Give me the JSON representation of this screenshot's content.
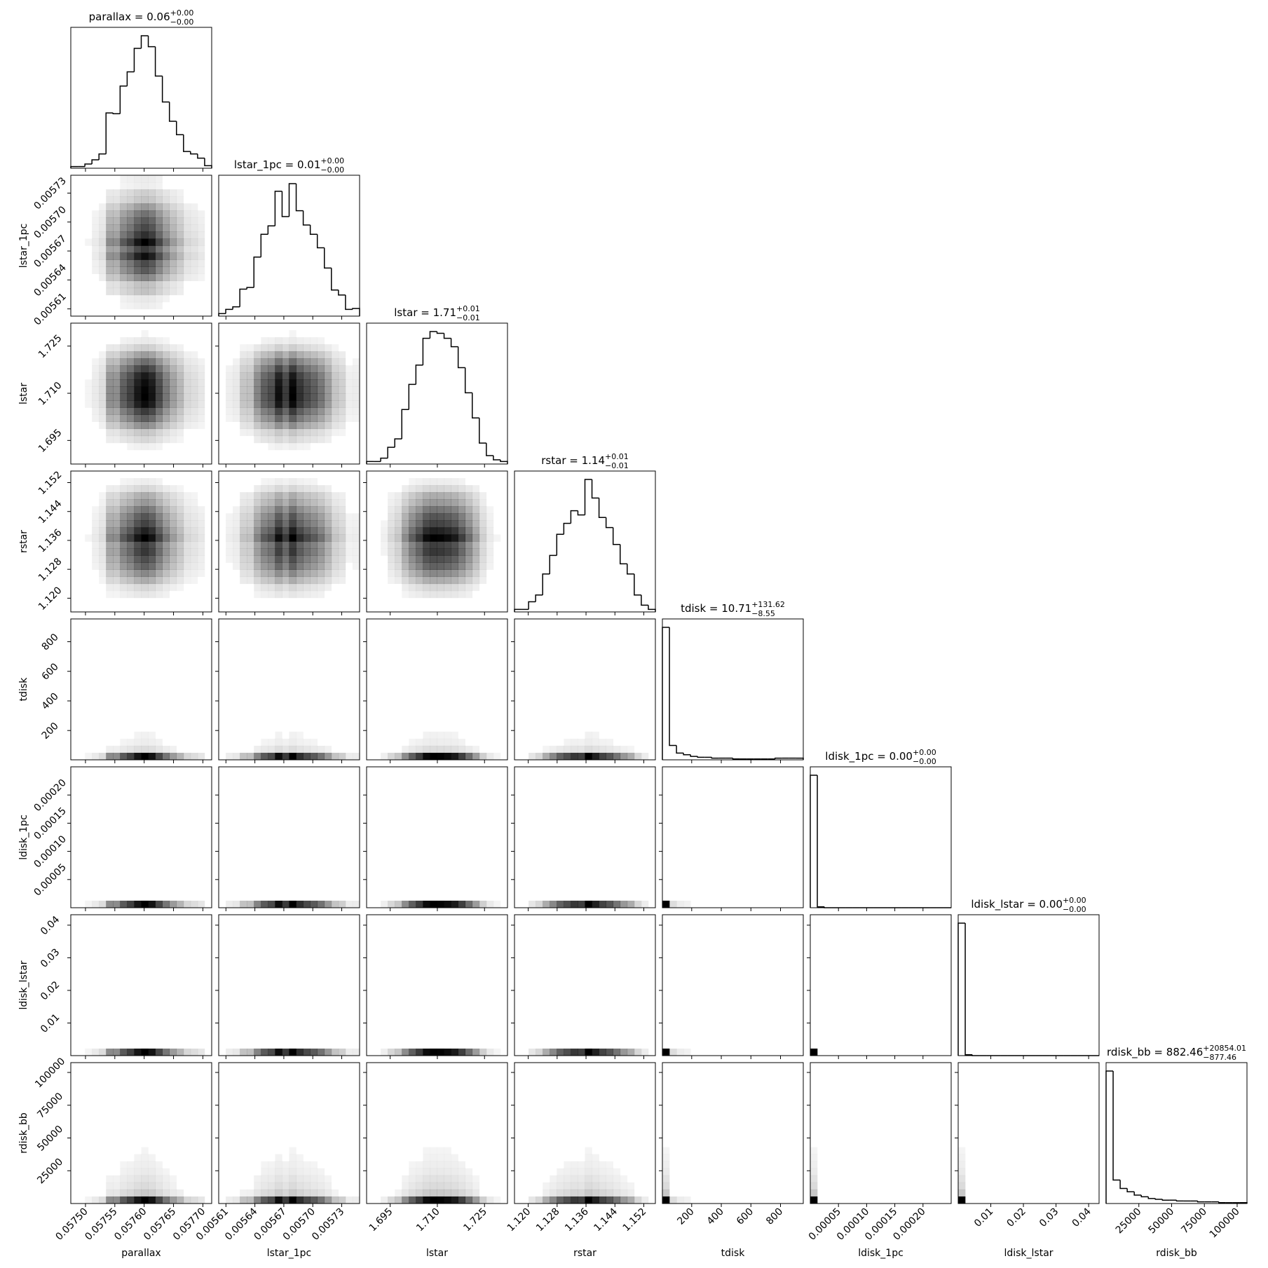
{
  "chart_data": {
    "type": "corner",
    "color": "#000000",
    "params": [
      {
        "name": "parallax",
        "title": "parallax = 0.06",
        "title_sup": "+0.00",
        "title_sub": "−0.00",
        "xlim": [
          0.057475,
          0.057715
        ],
        "ticks": [
          {
            "value": 0.0575,
            "label": "0.05750"
          },
          {
            "value": 0.05755,
            "label": "0.05755"
          },
          {
            "value": 0.0576,
            "label": "0.05760"
          },
          {
            "value": 0.05765,
            "label": "0.05765"
          },
          {
            "value": 0.0577,
            "label": "0.05770"
          }
        ],
        "bins": [
          0.057475,
          0.057487,
          0.057499,
          0.057511,
          0.057523,
          0.057535,
          0.057547,
          0.057559,
          0.057571,
          0.057583,
          0.057595,
          0.057607,
          0.057619,
          0.057631,
          0.057643,
          0.057655,
          0.057667,
          0.057679,
          0.057691,
          0.057703,
          0.057715
        ],
        "counts": [
          2,
          2,
          5,
          10,
          17,
          66,
          65,
          98,
          115,
          143,
          158,
          145,
          110,
          79,
          56,
          40,
          20,
          17,
          12,
          3
        ]
      },
      {
        "name": "lstar_1pc",
        "title": "lstar_1pc = 0.01",
        "title_sup": "+0.00",
        "title_sub": "−0.00",
        "xlim": [
          0.0056025,
          0.0057485
        ],
        "ticks": [
          0.00561,
          0.00564,
          0.00567,
          {
            "value": 0.0057,
            "label": "0.00570"
          },
          0.00573
        ],
        "bins": [
          0.0056025,
          0.0056098,
          0.0056171,
          0.0056244,
          0.0056317,
          0.005639,
          0.0056463,
          0.0056536,
          0.0056609,
          0.0056682,
          0.0056755,
          0.0056828,
          0.0056901,
          0.0056974,
          0.0057047,
          0.005712,
          0.0057193,
          0.0057266,
          0.0057339,
          0.0057412,
          0.0057485
        ],
        "counts": [
          3,
          8,
          11,
          32,
          34,
          70,
          97,
          107,
          148,
          118,
          157,
          125,
          108,
          97,
          81,
          57,
          31,
          25,
          8,
          9
        ]
      },
      {
        "name": "lstar",
        "title": "lstar = 1.71",
        "title_sup": "+0.01",
        "title_sub": "−0.01",
        "xlim": [
          1.6875,
          1.7323
        ],
        "ticks": [
          1.695,
          {
            "value": 1.71,
            "label": "1.710"
          },
          1.725
        ],
        "bins": [
          1.6875,
          1.68974,
          1.69198,
          1.69422,
          1.69646,
          1.6987,
          1.70094,
          1.70318,
          1.70542,
          1.70766,
          1.7099,
          1.71214,
          1.71438,
          1.71662,
          1.71886,
          1.7211,
          1.72334,
          1.72558,
          1.72782,
          1.73006,
          1.7323
        ],
        "counts": [
          3,
          3,
          7,
          20,
          30,
          65,
          95,
          118,
          150,
          158,
          156,
          150,
          140,
          115,
          85,
          55,
          25,
          10,
          5,
          3
        ]
      },
      {
        "name": "rstar",
        "title": "rstar = 1.14",
        "title_sup": "+0.01",
        "title_sub": "−0.01",
        "xlim": [
          1.1162,
          1.1552
        ],
        "ticks": [
          {
            "value": 1.12,
            "label": "1.120"
          },
          1.128,
          1.136,
          1.144,
          1.152
        ],
        "bins": [
          1.1162,
          1.11815,
          1.1201,
          1.12205,
          1.124,
          1.12595,
          1.1279,
          1.12985,
          1.1318,
          1.13375,
          1.1357,
          1.13765,
          1.1396,
          1.14155,
          1.1435,
          1.14545,
          1.1474,
          1.14935,
          1.1513,
          1.15325,
          1.1552
        ],
        "counts": [
          3,
          3,
          12,
          20,
          45,
          67,
          92,
          105,
          120,
          115,
          157,
          135,
          112,
          100,
          80,
          57,
          45,
          20,
          8,
          3
        ]
      },
      {
        "name": "tdisk",
        "title": "tdisk = 10.71",
        "title_sup": "+131.62",
        "title_sub": "−8.55",
        "xlim": [
          2,
          954
        ],
        "ticks": [
          200,
          400,
          600,
          800
        ],
        "bins": [
          2,
          49.6,
          97.2,
          144.8,
          192.4,
          240,
          287.6,
          335.2,
          382.8,
          430.4,
          478,
          525.6,
          573.2,
          620.8,
          668.4,
          716,
          763.6,
          811.2,
          858.8,
          906.4,
          954
        ],
        "counts": [
          157,
          17,
          8,
          6,
          4,
          3,
          3,
          2,
          2,
          2,
          1,
          1,
          1,
          1,
          1,
          1,
          2,
          2,
          2,
          2
        ]
      },
      {
        "name": "ldisk_1pc",
        "title": "ldisk_1pc = 0.00",
        "title_sup": "+0.00",
        "title_sub": "−0.00",
        "xlim": [
          0,
          0.00025
        ],
        "ticks": [
          5e-05,
          {
            "value": 0.0001,
            "label": "0.00010"
          },
          0.00015,
          {
            "value": 0.0002,
            "label": "0.00020"
          }
        ],
        "bins": [
          0,
          1.25e-05,
          2.5e-05,
          3.75e-05,
          5e-05,
          6.25e-05,
          7.5e-05,
          8.75e-05,
          0.0001,
          0.0001125,
          0.000125,
          0.0001375,
          0.00015,
          0.0001625,
          0.000175,
          0.0001875,
          0.0002,
          0.0002125,
          0.000225,
          0.0002375,
          0.00025
        ],
        "counts": [
          157,
          1,
          0,
          0,
          0,
          0,
          0,
          0,
          0,
          0,
          0,
          0,
          0,
          0,
          0,
          0,
          0,
          0,
          0,
          0
        ]
      },
      {
        "name": "ldisk_lstar",
        "title": "ldisk_lstar = 0.00",
        "title_sup": "+0.00",
        "title_sub": "−0.00",
        "xlim": [
          0,
          0.0432
        ],
        "ticks": [
          0.01,
          0.02,
          0.03,
          0.04
        ],
        "bins": [
          0,
          0.00216,
          0.00432,
          0.00648,
          0.00864,
          0.0108,
          0.01296,
          0.01512,
          0.01728,
          0.01944,
          0.0216,
          0.02376,
          0.02592,
          0.02808,
          0.03024,
          0.0324,
          0.03456,
          0.03672,
          0.03888,
          0.04104,
          0.0432
        ],
        "counts": [
          157,
          1,
          0,
          0,
          0,
          0,
          0,
          0,
          0,
          0,
          0,
          0,
          0,
          0,
          0,
          0,
          0,
          0,
          0,
          0
        ]
      },
      {
        "name": "rdisk_bb",
        "title": "rdisk_bb = 882.46",
        "title_sup": "+20854.01",
        "title_sub": "−877.46",
        "xlim": [
          0,
          107500
        ],
        "ticks": [
          25000,
          50000,
          75000,
          100000
        ],
        "bins": [
          0,
          5375,
          10750,
          16125,
          21500,
          26875,
          32250,
          37625,
          43000,
          48375,
          53750,
          59125,
          64500,
          69875,
          75250,
          80625,
          86000,
          91375,
          96750,
          102125,
          107500
        ],
        "counts": [
          158,
          28,
          18,
          14,
          10,
          8,
          6,
          5,
          4,
          4,
          3,
          3,
          3,
          2,
          2,
          2,
          1,
          1,
          1,
          1
        ]
      }
    ]
  }
}
